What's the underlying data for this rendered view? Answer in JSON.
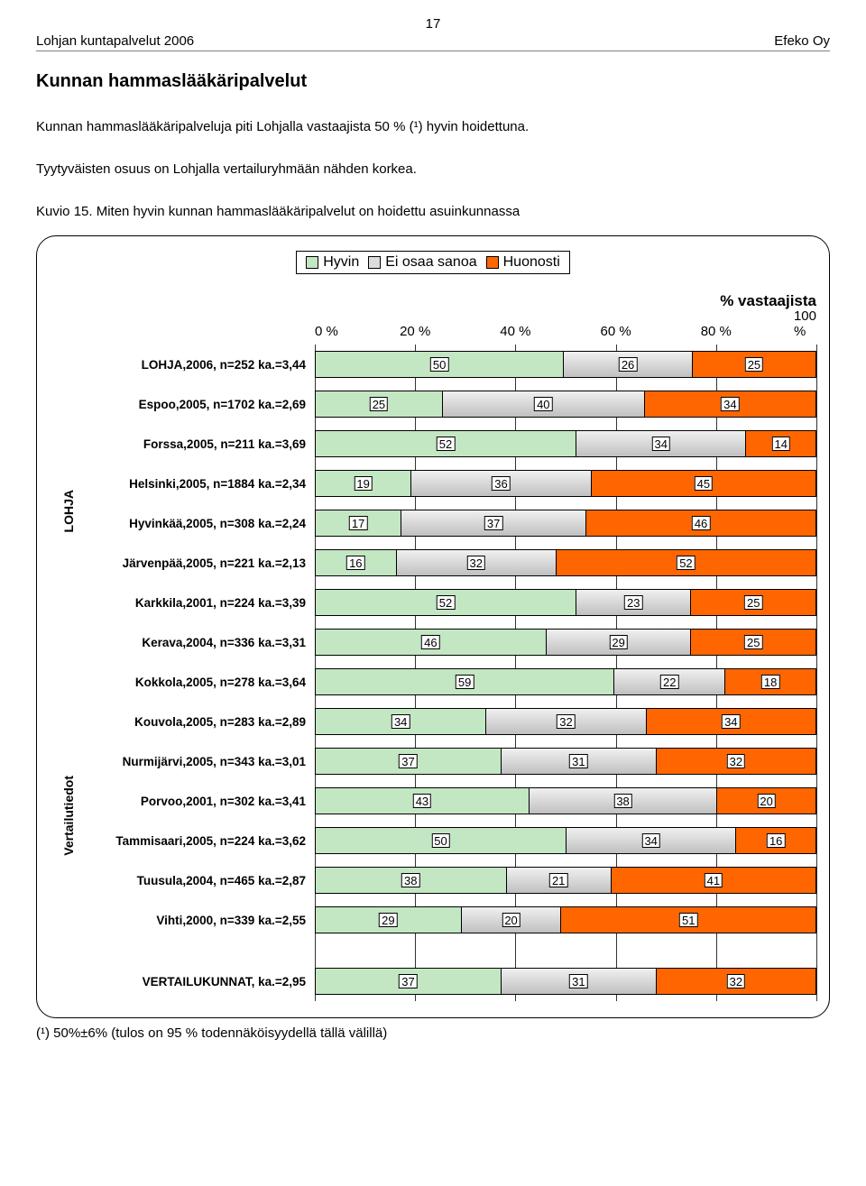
{
  "page_number": "17",
  "header_left": "Lohjan kuntapalvelut 2006",
  "header_right": "Efeko Oy",
  "title": "Kunnan hammaslääkäripalvelut",
  "paragraph1": "Kunnan hammaslääkäripalveluja piti Lohjalla vastaajista 50 % (¹) hyvin hoidettuna.",
  "paragraph2": "Tyytyväisten osuus on Lohjalla vertailuryhmään nähden korkea.",
  "caption": "Kuvio 15. Miten hyvin kunnan hammaslääkäripalvelut on hoidettu asuinkunnassa",
  "footnote": "(¹) 50%±6% (tulos on 95 % todennäköisyydellä tällä välillä)",
  "chart": {
    "legend": {
      "items": [
        {
          "label": "Hyvin",
          "color": "#c3e6c3"
        },
        {
          "label": "Ei osaa sanoa",
          "color": "#dcdcdc"
        },
        {
          "label": "Huonosti",
          "color": "#ff6600"
        }
      ]
    },
    "axis_title": "% vastaajista",
    "ticks": [
      "0 %",
      "20 %",
      "40 %",
      "60 %",
      "80 %",
      "100 %"
    ],
    "colors": {
      "good": "#c3e6c3",
      "dk": "#d8d8d8",
      "bad": "#ff6600",
      "dk_gradient_start": "#f0f0f0",
      "dk_gradient_end": "#c0c0c0",
      "grid": "#333333"
    },
    "y_group_labels": [
      "LOHJA",
      "Vertailutiedot"
    ],
    "rows": [
      {
        "label": "LOHJA,2006, n=252 ka.=3,44",
        "values": [
          50,
          26,
          25
        ],
        "group": 0
      },
      {
        "label": "Espoo,2005, n=1702 ka.=2,69",
        "values": [
          25,
          40,
          34
        ],
        "group": 1
      },
      {
        "label": "Forssa,2005, n=211 ka.=3,69",
        "values": [
          52,
          34,
          14
        ],
        "group": 1
      },
      {
        "label": "Helsinki,2005, n=1884 ka.=2,34",
        "values": [
          19,
          36,
          45
        ],
        "group": 1
      },
      {
        "label": "Hyvinkää,2005, n=308 ka.=2,24",
        "values": [
          17,
          37,
          46
        ],
        "group": 1
      },
      {
        "label": "Järvenpää,2005, n=221 ka.=2,13",
        "values": [
          16,
          32,
          52
        ],
        "group": 1
      },
      {
        "label": "Karkkila,2001, n=224 ka.=3,39",
        "values": [
          52,
          23,
          25
        ],
        "group": 1
      },
      {
        "label": "Kerava,2004, n=336 ka.=3,31",
        "values": [
          46,
          29,
          25
        ],
        "group": 1
      },
      {
        "label": "Kokkola,2005, n=278 ka.=3,64",
        "values": [
          59,
          22,
          18
        ],
        "group": 1
      },
      {
        "label": "Kouvola,2005, n=283 ka.=2,89",
        "values": [
          34,
          32,
          34
        ],
        "group": 1
      },
      {
        "label": "Nurmijärvi,2005, n=343 ka.=3,01",
        "values": [
          37,
          31,
          32
        ],
        "group": 1
      },
      {
        "label": "Porvoo,2001, n=302 ka.=3,41",
        "values": [
          43,
          38,
          20
        ],
        "group": 1
      },
      {
        "label": "Tammisaari,2005, n=224 ka.=3,62",
        "values": [
          50,
          34,
          16
        ],
        "group": 1
      },
      {
        "label": "Tuusula,2004, n=465 ka.=2,87",
        "values": [
          38,
          21,
          41
        ],
        "group": 1
      },
      {
        "label": "Vihti,2000, n=339 ka.=2,55",
        "values": [
          29,
          20,
          51
        ],
        "group": 1
      }
    ],
    "summary_row": {
      "label": "VERTAILUKUNNAT, ka.=2,95",
      "values": [
        37,
        31,
        32
      ]
    }
  }
}
